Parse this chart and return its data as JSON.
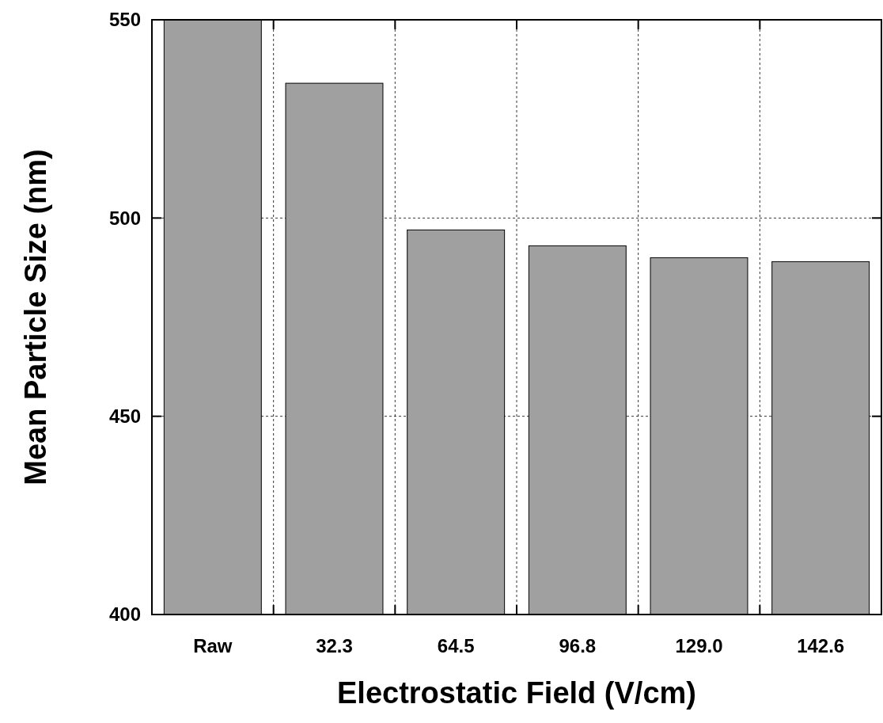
{
  "chart_data": {
    "type": "bar",
    "xlabel": "Electrostatic Field (V/cm)",
    "ylabel": "Mean Particle Size (nm)",
    "categories": [
      "Raw",
      "32.3",
      "64.5",
      "96.8",
      "129.0",
      "142.6"
    ],
    "values": [
      550,
      534,
      497,
      493,
      490,
      489
    ],
    "color": "#a0a0a0",
    "ylim": [
      400,
      550
    ],
    "yticks": [
      400,
      450,
      500,
      550
    ],
    "grid": true
  }
}
